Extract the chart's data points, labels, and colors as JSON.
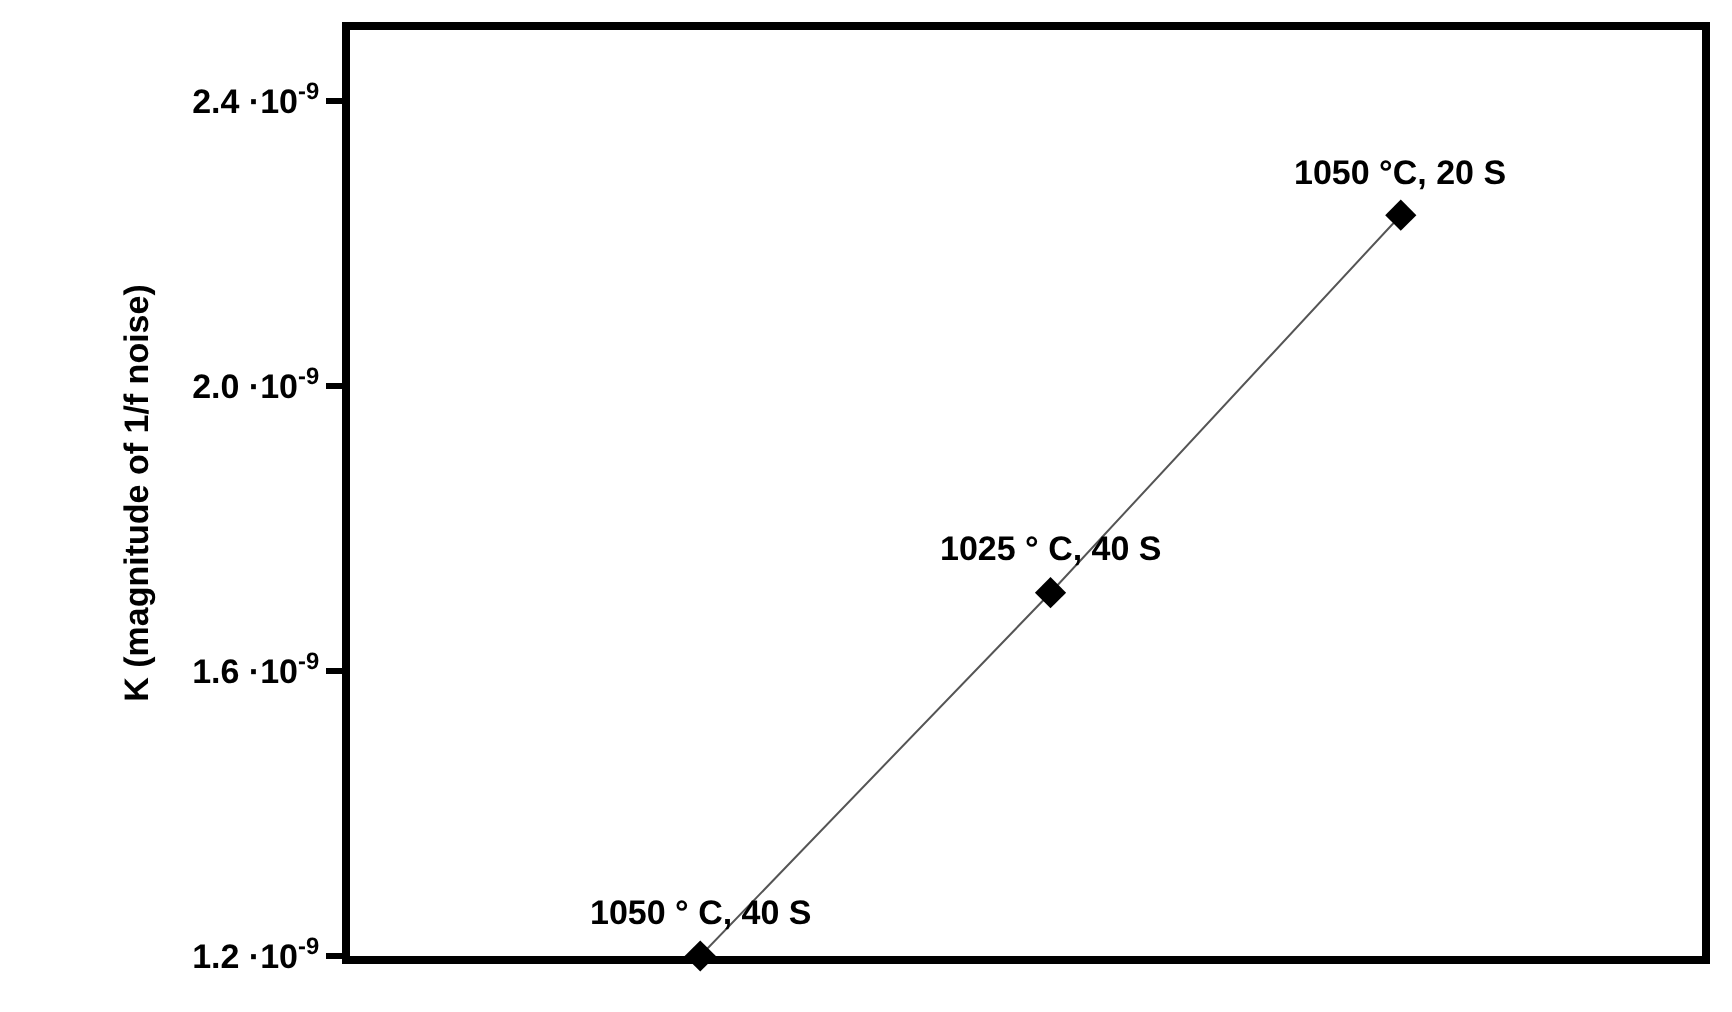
{
  "chart_data": {
    "type": "line",
    "ylabel": "K (magnitude of 1/f noise)",
    "categories": [
      null,
      null,
      null
    ],
    "series": [
      {
        "color": "#000000",
        "values": [
          1.2e-09,
          1.71e-09,
          2.24e-09
        ]
      }
    ],
    "ylim": [
      1.2e-09,
      2.5e-09
    ],
    "yticks": [
      {
        "value": 1.2e-09,
        "label": "1.2 ·10$^{-9}$"
      },
      {
        "value": 1.6e-09,
        "label": "1.6 ·10$^{-9}$"
      },
      {
        "value": 2e-09,
        "label": "2.0 ·10$^{-9}$"
      },
      {
        "value": 2.4e-09,
        "label": "2.4 ·10$^{-9}$"
      }
    ],
    "annotations": [
      {
        "text": "1050 ° C, 40 S",
        "y": 1.2e-09
      },
      {
        "text": "1025 ° C, 40 S",
        "y": 1.71e-09
      },
      {
        "text": "1050 °C, 20 S",
        "y": 2.24e-09
      }
    ],
    "marker": "diamond",
    "line_style": "solid",
    "grid": false
  }
}
